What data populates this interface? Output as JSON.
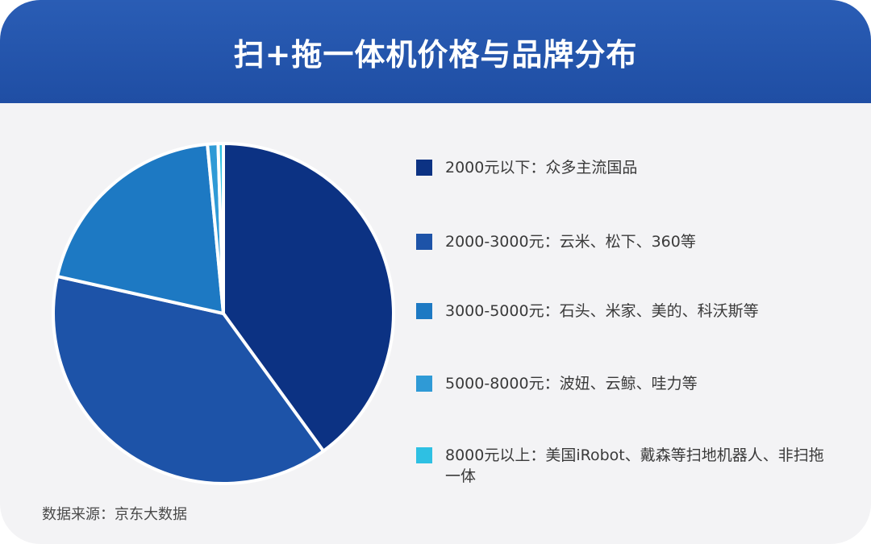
{
  "title": "扫+拖一体机价格与品牌分布",
  "source": "数据来源：京东大数据",
  "colors": {
    "header": "#2a5db5",
    "background": "#f3f3f5",
    "slices": [
      "#0c3283",
      "#1d53a8",
      "#1d79c3",
      "#2f9ad6",
      "#2ec0e3"
    ]
  },
  "legend": [
    {
      "label": "2000元以下：众多主流国品"
    },
    {
      "label": "2000-3000元：云米、松下、360等"
    },
    {
      "label": "3000-5000元：石头、米家、美的、科沃斯等"
    },
    {
      "label": "5000-8000元：波妞、云鲸、哇力等"
    },
    {
      "label": "8000元以上：美国iRobot、戴森等扫地机器人、非扫拖一体"
    }
  ],
  "chart_data": {
    "type": "pie",
    "title": "扫+拖一体机价格与品牌分布",
    "categories": [
      "2000元以下",
      "2000-3000元",
      "3000-5000元",
      "5000-8000元",
      "8000元以上"
    ],
    "values": [
      40,
      38.5,
      20,
      1,
      0.5
    ],
    "unit": "%",
    "legend_position": "right"
  }
}
